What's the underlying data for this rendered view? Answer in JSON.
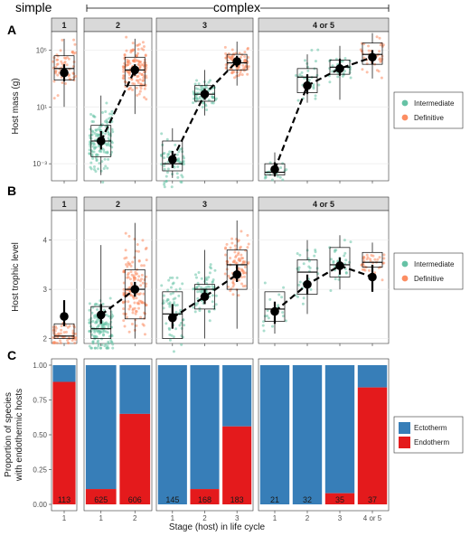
{
  "header": {
    "simple_label": "simple",
    "complex_label": "complex"
  },
  "x_axis_title": "Stage (host) in life cycle",
  "panel_letters": [
    "A",
    "B",
    "C"
  ],
  "facets": [
    {
      "label": "1",
      "stages": [
        "1"
      ]
    },
    {
      "label": "2",
      "stages": [
        "1",
        "2"
      ]
    },
    {
      "label": "3",
      "stages": [
        "1",
        "2",
        "3"
      ]
    },
    {
      "label": "4 or 5",
      "stages": [
        "1",
        "2",
        "3",
        "4 or 5"
      ]
    }
  ],
  "colors": {
    "intermediate": "#66c2a5",
    "definitive": "#fc8d62",
    "ectotherm": "#377eb8",
    "endotherm": "#e41a1c"
  },
  "chart_data": [
    {
      "type": "scatter",
      "panel": "A",
      "ylabel": "Host mass (g)",
      "y_scale": "log10",
      "ylim_log10": [
        -4.2,
        6.3
      ],
      "y_ticks": [
        {
          "log10": -3,
          "label": "10⁻³"
        },
        {
          "log10": 1,
          "label": "10¹"
        },
        {
          "log10": 5,
          "label": "10⁵"
        }
      ],
      "legend": {
        "items": [
          "Intermediate",
          "Definitive"
        ],
        "position": "right"
      },
      "groups": [
        {
          "facet": 0,
          "stage": 0,
          "host": "definitive",
          "box": [
            2.9,
            3.7,
            4.6
          ],
          "whisk": [
            1.0,
            5.8
          ],
          "mean": 3.4,
          "ci": [
            2.8,
            4.0
          ]
        },
        {
          "facet": 1,
          "stage": 0,
          "host": "intermediate",
          "box": [
            -2.5,
            -1.4,
            -0.3
          ],
          "whisk": [
            -3.8,
            1.8
          ],
          "mean": -1.4,
          "ci": [
            -2.0,
            -0.7
          ]
        },
        {
          "facet": 1,
          "stage": 1,
          "host": "definitive",
          "box": [
            2.5,
            3.6,
            4.5
          ],
          "whisk": [
            0.5,
            5.8
          ],
          "mean": 3.6,
          "ci": [
            3.2,
            4.0
          ]
        },
        {
          "facet": 2,
          "stage": 0,
          "host": "intermediate",
          "box": [
            -3.5,
            -3.0,
            -1.4
          ],
          "whisk": [
            -4.0,
            -0.5
          ],
          "mean": -2.7,
          "ci": [
            -3.3,
            -2.1
          ]
        },
        {
          "facet": 2,
          "stage": 1,
          "host": "intermediate",
          "box": [
            1.4,
            1.9,
            2.5
          ],
          "whisk": [
            0.4,
            3.6
          ],
          "mean": 1.9,
          "ci": [
            1.5,
            2.3
          ]
        },
        {
          "facet": 2,
          "stage": 2,
          "host": "definitive",
          "box": [
            3.6,
            4.1,
            4.7
          ],
          "whisk": [
            2.5,
            5.6
          ],
          "mean": 4.2,
          "ci": [
            3.8,
            4.6
          ]
        },
        {
          "facet": 3,
          "stage": 0,
          "host": "intermediate",
          "box": [
            -3.8,
            -3.6,
            -3.0
          ],
          "whisk": [
            -3.9,
            -2.2
          ],
          "mean": -3.4,
          "ci": [
            -3.9,
            -2.9
          ]
        },
        {
          "facet": 3,
          "stage": 1,
          "host": "intermediate",
          "box": [
            2.0,
            3.1,
            3.7
          ],
          "whisk": [
            1.3,
            4.7
          ],
          "mean": 2.5,
          "ci": [
            1.9,
            3.3
          ]
        },
        {
          "facet": 3,
          "stage": 2,
          "host": "intermediate",
          "box": [
            3.3,
            3.8,
            4.3
          ],
          "whisk": [
            1.5,
            5.3
          ],
          "mean": 3.7,
          "ci": [
            3.2,
            4.4
          ]
        },
        {
          "facet": 3,
          "stage": 3,
          "host": "definitive",
          "box": [
            4.0,
            4.7,
            5.5
          ],
          "whisk": [
            3.0,
            6.2
          ],
          "mean": 4.5,
          "ci": [
            4.0,
            5.0
          ]
        }
      ]
    },
    {
      "type": "scatter",
      "panel": "B",
      "ylabel": "Host trophic level",
      "ylim": [
        1.9,
        4.6
      ],
      "y_ticks": [
        2,
        3,
        4
      ],
      "legend": {
        "items": [
          "Intermediate",
          "Definitive"
        ],
        "position": "right"
      },
      "groups": [
        {
          "facet": 0,
          "stage": 0,
          "host": "definitive",
          "box": [
            2.0,
            2.05,
            2.3
          ],
          "whisk": [
            2.0,
            2.55
          ],
          "mean": 2.45,
          "ci": [
            2.25,
            2.78
          ]
        },
        {
          "facet": 1,
          "stage": 0,
          "host": "intermediate",
          "box": [
            2.0,
            2.2,
            2.65
          ],
          "whisk": [
            2.0,
            3.9
          ],
          "mean": 2.48,
          "ci": [
            2.3,
            2.7
          ]
        },
        {
          "facet": 1,
          "stage": 1,
          "host": "definitive",
          "box": [
            2.4,
            3.0,
            3.4
          ],
          "whisk": [
            2.0,
            4.35
          ],
          "mean": 3.0,
          "ci": [
            2.85,
            3.15
          ]
        },
        {
          "facet": 2,
          "stage": 0,
          "host": "intermediate",
          "box": [
            2.0,
            2.5,
            2.95
          ],
          "whisk": [
            2.0,
            2.95
          ],
          "mean": 2.42,
          "ci": [
            2.2,
            2.7
          ]
        },
        {
          "facet": 2,
          "stage": 1,
          "host": "intermediate",
          "box": [
            2.6,
            3.0,
            3.1
          ],
          "whisk": [
            2.0,
            3.8
          ],
          "mean": 2.85,
          "ci": [
            2.7,
            3.0
          ]
        },
        {
          "facet": 2,
          "stage": 2,
          "host": "definitive",
          "box": [
            3.0,
            3.5,
            3.8
          ],
          "whisk": [
            2.2,
            4.4
          ],
          "mean": 3.3,
          "ci": [
            3.15,
            3.5
          ]
        },
        {
          "facet": 3,
          "stage": 0,
          "host": "intermediate",
          "box": [
            2.35,
            2.6,
            2.95
          ],
          "whisk": [
            2.1,
            2.95
          ],
          "mean": 2.55,
          "ci": [
            2.3,
            2.75
          ]
        },
        {
          "facet": 3,
          "stage": 1,
          "host": "intermediate",
          "box": [
            2.9,
            3.35,
            3.6
          ],
          "whisk": [
            2.5,
            4.0
          ],
          "mean": 3.1,
          "ci": [
            2.9,
            3.3
          ]
        },
        {
          "facet": 3,
          "stage": 2,
          "host": "intermediate",
          "box": [
            3.25,
            3.5,
            3.85
          ],
          "whisk": [
            3.0,
            4.1
          ],
          "mean": 3.48,
          "ci": [
            3.3,
            3.65
          ]
        },
        {
          "facet": 3,
          "stage": 3,
          "host": "definitive",
          "box": [
            3.45,
            3.55,
            3.75
          ],
          "whisk": [
            3.0,
            3.95
          ],
          "mean": 3.25,
          "ci": [
            2.95,
            3.5
          ]
        }
      ]
    },
    {
      "type": "bar",
      "panel": "C",
      "stacked": true,
      "ylabel_line1": "Proportion of species",
      "ylabel_line2": "with endothermic hosts",
      "ylim": [
        0,
        1
      ],
      "y_ticks": [
        "0.00",
        "0.25",
        "0.50",
        "0.75",
        "1.00"
      ],
      "legend": {
        "items": [
          "Ectotherm",
          "Endotherm"
        ],
        "position": "right"
      },
      "bars": [
        {
          "facet": 0,
          "stage": 0,
          "endotherm": 0.88,
          "n": "113"
        },
        {
          "facet": 1,
          "stage": 0,
          "endotherm": 0.11,
          "n": "625"
        },
        {
          "facet": 1,
          "stage": 1,
          "endotherm": 0.65,
          "n": "606"
        },
        {
          "facet": 2,
          "stage": 0,
          "endotherm": 0.0,
          "n": "145"
        },
        {
          "facet": 2,
          "stage": 1,
          "endotherm": 0.11,
          "n": "168"
        },
        {
          "facet": 2,
          "stage": 2,
          "endotherm": 0.56,
          "n": "183"
        },
        {
          "facet": 3,
          "stage": 0,
          "endotherm": 0.0,
          "n": "21"
        },
        {
          "facet": 3,
          "stage": 1,
          "endotherm": 0.0,
          "n": "32"
        },
        {
          "facet": 3,
          "stage": 2,
          "endotherm": 0.08,
          "n": "35"
        },
        {
          "facet": 3,
          "stage": 3,
          "endotherm": 0.84,
          "n": "37"
        }
      ]
    }
  ]
}
